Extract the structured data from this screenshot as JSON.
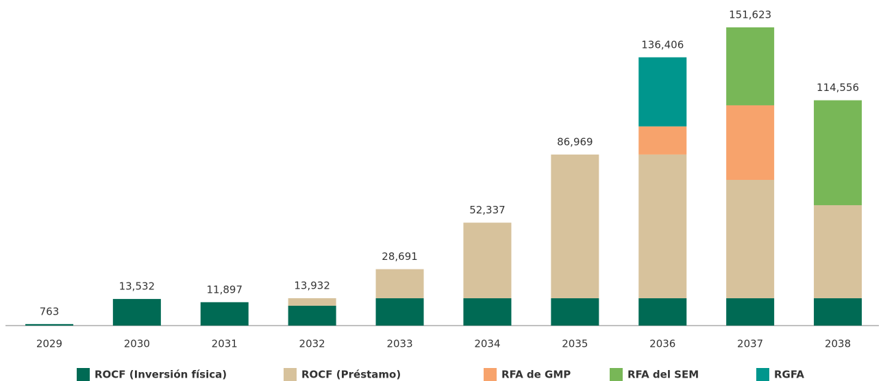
{
  "chart_data": {
    "type": "stacked-bar",
    "categories": [
      "2029",
      "2030",
      "2031",
      "2032",
      "2033",
      "2034",
      "2035",
      "2036",
      "2037",
      "2038"
    ],
    "series": [
      {
        "name": "ROCF (Inversión física)",
        "color": "#006a54",
        "values": [
          763,
          13532,
          11897,
          10100,
          13900,
          13900,
          13900,
          13900,
          13900,
          13900
        ]
      },
      {
        "name": "ROCF (Préstamo)",
        "color": "#d7c29c",
        "values": [
          null,
          null,
          null,
          3832,
          14791,
          38437,
          73069,
          73069,
          60180,
          47313
        ]
      },
      {
        "name": "RFA de GMP",
        "color": "#f7a36c",
        "values": [
          null,
          null,
          null,
          null,
          null,
          null,
          null,
          14300,
          37910,
          null
        ]
      },
      {
        "name": "RFA del SEM",
        "color": "#78b757",
        "values": [
          null,
          null,
          null,
          null,
          null,
          null,
          null,
          null,
          39633,
          53343
        ]
      },
      {
        "name": "RGFA",
        "color": "#00968d",
        "values": [
          null,
          null,
          null,
          null,
          null,
          null,
          null,
          35137,
          null,
          null
        ]
      }
    ],
    "totals": [
      763,
      13532,
      11897,
      13932,
      28691,
      52337,
      86969,
      136406,
      151623,
      114556
    ],
    "total_labels": [
      "763",
      "13,532",
      "11,897",
      "13,932",
      "28,691",
      "52,337",
      "86,969",
      "136,406",
      "151,623",
      "114,556"
    ],
    "legend": "bottom"
  }
}
